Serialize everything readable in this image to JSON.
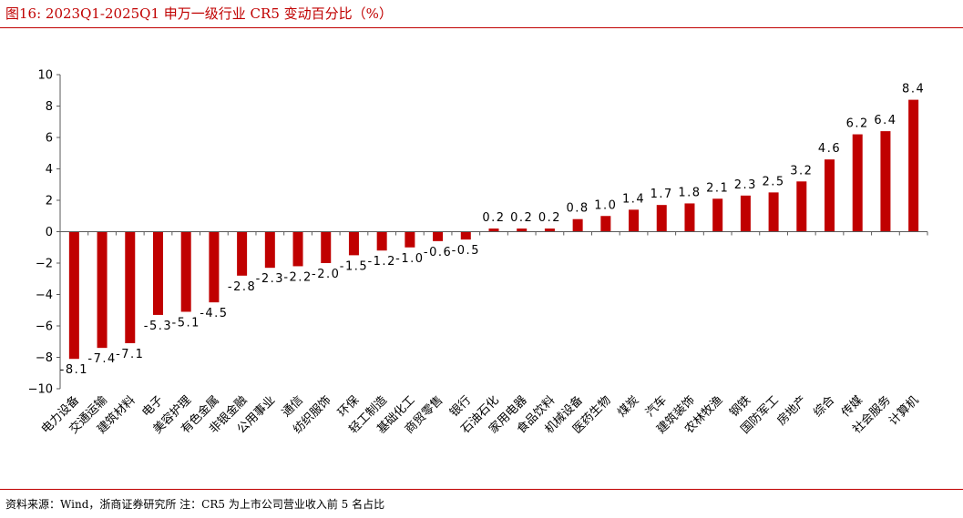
{
  "header": {
    "title": "图16:   2023Q1-2025Q1 申万一级行业 CR5 变动百分比（%）"
  },
  "footer": {
    "source": "资料来源：Wind，浙商证券研究所  注：CR5 为上市公司营业收入前 5 名占比"
  },
  "colors": {
    "bar": "#c00000",
    "axis": "#595959",
    "text": "#000000"
  },
  "chart_data": {
    "type": "bar",
    "categories": [
      "电力设备",
      "交通运输",
      "建筑材料",
      "电子",
      "美容护理",
      "有色金属",
      "非银金融",
      "公用事业",
      "通信",
      "纺织服饰",
      "环保",
      "轻工制造",
      "基础化工",
      "商贸零售",
      "银行",
      "石油石化",
      "家用电器",
      "食品饮料",
      "机械设备",
      "医药生物",
      "煤炭",
      "汽车",
      "建筑装饰",
      "农林牧渔",
      "钢铁",
      "国防军工",
      "房地产",
      "综合",
      "传媒",
      "社会服务",
      "计算机"
    ],
    "values": [
      -8.1,
      -7.4,
      -7.1,
      -5.3,
      -5.1,
      -4.5,
      -2.8,
      -2.3,
      -2.2,
      -2.0,
      -1.5,
      -1.2,
      -1.0,
      -0.6,
      -0.5,
      0.2,
      0.2,
      0.2,
      0.8,
      1.0,
      1.4,
      1.7,
      1.8,
      2.1,
      2.3,
      2.5,
      3.2,
      4.6,
      6.2,
      6.4,
      8.4
    ],
    "value_labels": [
      "-8.1",
      "-7.4",
      "-7.1",
      "-5.3",
      "-5.1",
      "-4.5",
      "-2.8",
      "-2.3",
      "-2.2",
      "-2.0",
      "-1.5",
      "-1.2",
      "-1.0",
      "-0.6",
      "-0.5",
      "0.2",
      "0.2",
      "0.2",
      "0.8",
      "1.0",
      "1.4",
      "1.7",
      "1.8",
      "2.1",
      "2.3",
      "2.5",
      "3.2",
      "4.6",
      "6.2",
      "6.4",
      "8.4"
    ],
    "ylim": [
      -10,
      10
    ],
    "yticks": [
      -10,
      -8,
      -6,
      -4,
      -2,
      0,
      2,
      4,
      6,
      8,
      10
    ],
    "ytick_labels": [
      "−10",
      "−8",
      "−6",
      "−4",
      "−2",
      "0",
      "2",
      "4",
      "6",
      "8",
      "10"
    ],
    "grid": false,
    "legend": "none"
  }
}
